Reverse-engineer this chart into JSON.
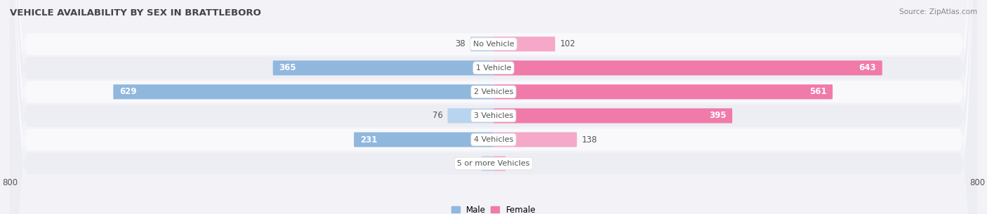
{
  "title": "VEHICLE AVAILABILITY BY SEX IN BRATTLEBORO",
  "source": "Source: ZipAtlas.com",
  "categories": [
    "No Vehicle",
    "1 Vehicle",
    "2 Vehicles",
    "3 Vehicles",
    "4 Vehicles",
    "5 or more Vehicles"
  ],
  "male_values": [
    38,
    365,
    629,
    76,
    231,
    0
  ],
  "female_values": [
    102,
    643,
    561,
    395,
    138,
    0
  ],
  "male_color": "#90b8de",
  "female_color": "#f07aaa",
  "male_color_light": "#b8d4ee",
  "female_color_light": "#f5a8c8",
  "label_color_dark": "#555555",
  "label_color_white": "#ffffff",
  "bar_height": 0.62,
  "xlim": [
    -800,
    800
  ],
  "background_color": "#f2f2f7",
  "row_color_light": "#f9f9fc",
  "row_color_dark": "#ededf4",
  "title_fontsize": 9.5,
  "source_fontsize": 7.5,
  "tick_fontsize": 8.5,
  "value_fontsize": 8.5,
  "category_fontsize": 8
}
